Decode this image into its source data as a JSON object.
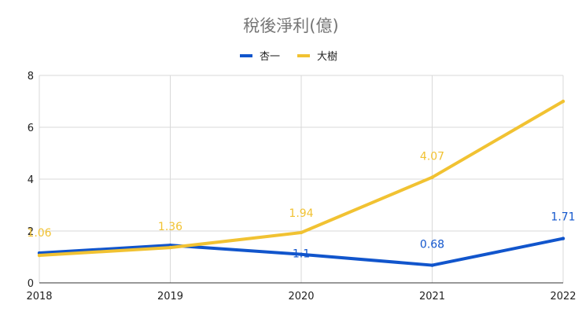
{
  "chart_data": {
    "type": "line",
    "title": "稅後淨利(億)",
    "categories": [
      "2018",
      "2019",
      "2020",
      "2021",
      "2022"
    ],
    "ylim": [
      0,
      8
    ],
    "yticks": [
      0,
      2,
      4,
      6,
      8
    ],
    "grid": true,
    "legend": "top-center",
    "series": [
      {
        "name": "杏一",
        "color": "#1155cc",
        "values": [
          1.15,
          1.45,
          1.1,
          0.68,
          1.71
        ],
        "labels": [
          "",
          "",
          "1.1",
          "0.68",
          "1.71"
        ]
      },
      {
        "name": "大樹",
        "color": "#f1c232",
        "values": [
          1.06,
          1.36,
          1.94,
          4.07,
          7.0
        ],
        "labels": [
          "1.06",
          "1.36",
          "1.94",
          "4.07",
          ""
        ]
      }
    ]
  }
}
